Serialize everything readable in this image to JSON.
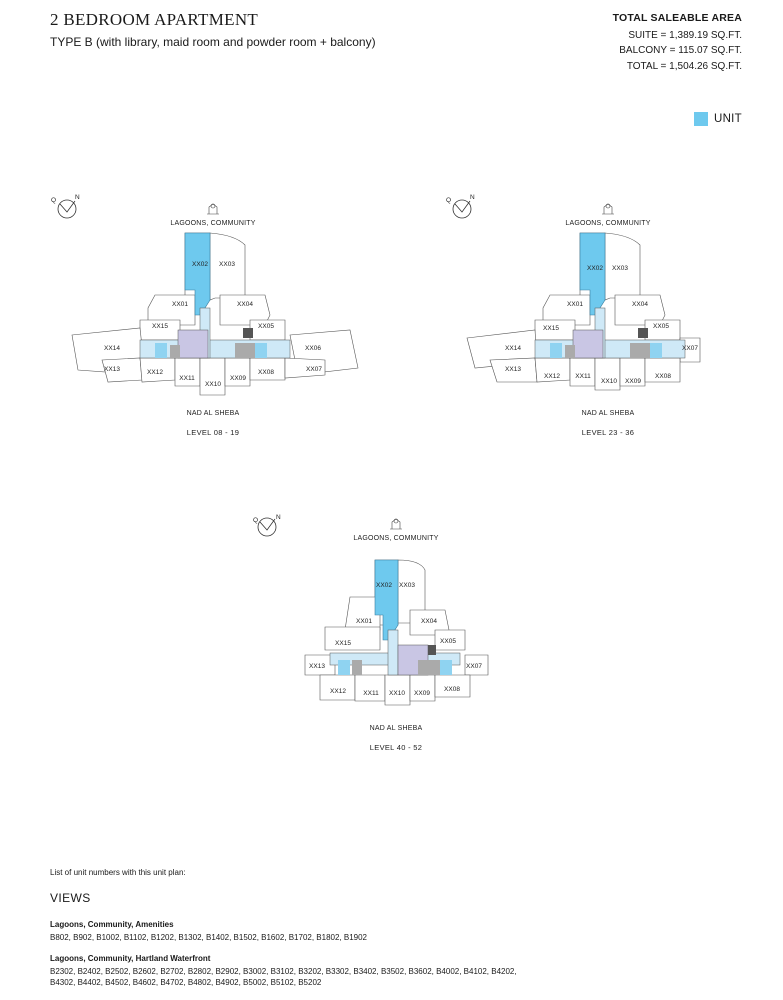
{
  "header": {
    "title": "2 BEDROOM APARTMENT",
    "subtitle": "TYPE B (with library, maid room and powder room + balcony)"
  },
  "area": {
    "heading": "TOTAL SALEABLE AREA",
    "suite": "SUITE = 1,389.19 SQ.FT.",
    "balcony": "BALCONY = 115.07 SQ.FT.",
    "total": "TOTAL = 1,504.26 SQ.FT."
  },
  "legend": {
    "label": "UNIT",
    "color": "#6ec9ee"
  },
  "compass": {
    "q": "Q",
    "n": "N"
  },
  "plans": [
    {
      "view_top": "LAGOONS, COMMUNITY",
      "view_bottom": "NAD AL SHEBA",
      "level": "LEVEL 08 - 19",
      "units": [
        "XX02",
        "XX03",
        "XX01",
        "XX04",
        "XX15",
        "XX05",
        "XX14",
        "XX06",
        "XX13",
        "XX12",
        "XX11",
        "XX10",
        "XX09",
        "XX08",
        "XX07"
      ]
    },
    {
      "view_top": "LAGOONS, COMMUNITY",
      "view_bottom": "NAD AL SHEBA",
      "level": "LEVEL 23 - 36",
      "units": [
        "XX02",
        "XX03",
        "XX01",
        "XX04",
        "XX15",
        "XX05",
        "XX14",
        "XX07",
        "XX13",
        "XX12",
        "XX11",
        "XX10",
        "XX09",
        "XX08"
      ]
    },
    {
      "view_top": "LAGOONS, COMMUNITY",
      "view_bottom": "NAD AL SHEBA",
      "level": "LEVEL 40 - 52",
      "units": [
        "XX02",
        "XX03",
        "XX01",
        "XX04",
        "XX15",
        "XX05",
        "XX13",
        "XX07",
        "XX12",
        "XX11",
        "XX10",
        "XX09",
        "XX08"
      ]
    }
  ],
  "list_intro": "List of unit numbers with this unit plan:",
  "views_heading": "VIEWS",
  "view_groups": [
    {
      "title": "Lagoons, Community, Amenities",
      "units": "B802, B902, B1002, B1102, B1202, B1302, B1402, B1502, B1602, B1702, B1802, B1902"
    },
    {
      "title": "Lagoons, Community, Hartland Waterfront",
      "units": "B2302, B2402, B2502, B2602, B2702, B2802, B2902, B3002, B3102, B3202, B3302, B3402, B3502, B3602, B4002, B4102, B4202, B4302, B4402, B4502, B4602, B4702, B4802, B4902, B5002, B5102, B5202"
    }
  ]
}
